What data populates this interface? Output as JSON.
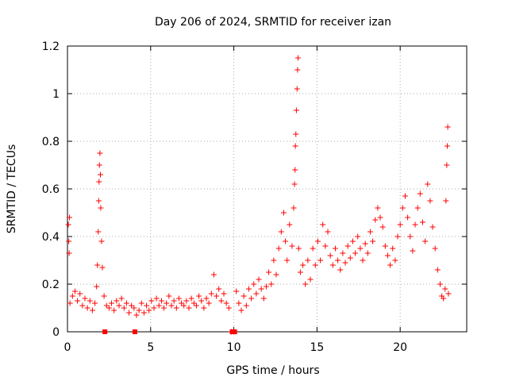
{
  "chart_data": {
    "type": "scatter",
    "title": "Day 206 of 2024, SRMTID for receiver izan",
    "xlabel": "GPS time / hours",
    "ylabel": "SRMTID / TECUs",
    "xlim": [
      0,
      24
    ],
    "ylim": [
      0,
      1.2
    ],
    "grid": true,
    "marker": "+",
    "color": "#ff0000",
    "x_ticks": [
      {
        "value": 0,
        "label": "0"
      },
      {
        "value": 5,
        "label": "5"
      },
      {
        "value": 10,
        "label": "10"
      },
      {
        "value": 15,
        "label": "15"
      },
      {
        "value": 20,
        "label": "20"
      }
    ],
    "y_ticks": [
      {
        "value": 0,
        "label": "0"
      },
      {
        "value": 0.2,
        "label": "0.2"
      },
      {
        "value": 0.4,
        "label": "0.4"
      },
      {
        "value": 0.6,
        "label": "0.6"
      },
      {
        "value": 0.8,
        "label": "0.8"
      },
      {
        "value": 1.0,
        "label": "1"
      },
      {
        "value": 1.2,
        "label": "1.2"
      }
    ],
    "series": [
      {
        "name": "SRMTID",
        "points": [
          [
            0.05,
            0.45
          ],
          [
            0.08,
            0.38
          ],
          [
            0.1,
            0.33
          ],
          [
            0.12,
            0.48
          ],
          [
            0.15,
            0.12
          ],
          [
            0.3,
            0.15
          ],
          [
            0.45,
            0.17
          ],
          [
            0.6,
            0.13
          ],
          [
            0.75,
            0.16
          ],
          [
            0.9,
            0.11
          ],
          [
            1.05,
            0.14
          ],
          [
            1.2,
            0.1
          ],
          [
            1.35,
            0.13
          ],
          [
            1.5,
            0.09
          ],
          [
            1.65,
            0.12
          ],
          [
            1.75,
            0.19
          ],
          [
            1.8,
            0.28
          ],
          [
            1.85,
            0.42
          ],
          [
            1.88,
            0.55
          ],
          [
            1.9,
            0.63
          ],
          [
            1.92,
            0.7
          ],
          [
            1.95,
            0.75
          ],
          [
            1.98,
            0.66
          ],
          [
            2.0,
            0.52
          ],
          [
            2.05,
            0.38
          ],
          [
            2.1,
            0.27
          ],
          [
            2.2,
            0.15
          ],
          [
            2.35,
            0.11
          ],
          [
            2.5,
            0.1
          ],
          [
            2.65,
            0.12
          ],
          [
            2.8,
            0.09
          ],
          [
            2.95,
            0.13
          ],
          [
            3.1,
            0.11
          ],
          [
            3.25,
            0.14
          ],
          [
            3.4,
            0.1
          ],
          [
            3.55,
            0.12
          ],
          [
            3.7,
            0.08
          ],
          [
            3.85,
            0.11
          ],
          [
            4.0,
            0.1
          ],
          [
            4.15,
            0.07
          ],
          [
            4.3,
            0.09
          ],
          [
            4.45,
            0.12
          ],
          [
            4.6,
            0.08
          ],
          [
            4.75,
            0.11
          ],
          [
            4.9,
            0.09
          ],
          [
            5.05,
            0.13
          ],
          [
            5.2,
            0.1
          ],
          [
            5.35,
            0.14
          ],
          [
            5.5,
            0.11
          ],
          [
            5.65,
            0.13
          ],
          [
            5.8,
            0.1
          ],
          [
            5.95,
            0.12
          ],
          [
            6.1,
            0.15
          ],
          [
            6.25,
            0.11
          ],
          [
            6.4,
            0.13
          ],
          [
            6.55,
            0.1
          ],
          [
            6.7,
            0.14
          ],
          [
            6.85,
            0.12
          ],
          [
            7.0,
            0.11
          ],
          [
            7.15,
            0.13
          ],
          [
            7.3,
            0.1
          ],
          [
            7.45,
            0.14
          ],
          [
            7.6,
            0.12
          ],
          [
            7.75,
            0.11
          ],
          [
            7.9,
            0.15
          ],
          [
            8.05,
            0.13
          ],
          [
            8.2,
            0.1
          ],
          [
            8.35,
            0.14
          ],
          [
            8.5,
            0.12
          ],
          [
            8.65,
            0.16
          ],
          [
            8.8,
            0.24
          ],
          [
            8.95,
            0.15
          ],
          [
            9.1,
            0.18
          ],
          [
            9.25,
            0.13
          ],
          [
            9.4,
            0.16
          ],
          [
            9.55,
            0.12
          ],
          [
            9.7,
            0.1
          ],
          [
            9.85,
            0.0
          ],
          [
            10.0,
            0.0
          ],
          [
            10.15,
            0.17
          ],
          [
            10.3,
            0.12
          ],
          [
            10.45,
            0.09
          ],
          [
            10.6,
            0.15
          ],
          [
            10.75,
            0.11
          ],
          [
            10.9,
            0.18
          ],
          [
            11.05,
            0.14
          ],
          [
            11.2,
            0.2
          ],
          [
            11.35,
            0.16
          ],
          [
            11.5,
            0.22
          ],
          [
            11.65,
            0.18
          ],
          [
            11.8,
            0.14
          ],
          [
            11.95,
            0.19
          ],
          [
            12.1,
            0.25
          ],
          [
            12.25,
            0.2
          ],
          [
            12.4,
            0.3
          ],
          [
            12.55,
            0.24
          ],
          [
            12.7,
            0.35
          ],
          [
            12.85,
            0.42
          ],
          [
            13.0,
            0.5
          ],
          [
            13.1,
            0.38
          ],
          [
            13.2,
            0.3
          ],
          [
            13.35,
            0.45
          ],
          [
            13.5,
            0.36
          ],
          [
            13.6,
            0.52
          ],
          [
            13.65,
            0.62
          ],
          [
            13.68,
            0.68
          ],
          [
            13.7,
            0.78
          ],
          [
            13.73,
            0.83
          ],
          [
            13.76,
            0.93
          ],
          [
            13.8,
            1.02
          ],
          [
            13.83,
            1.1
          ],
          [
            13.86,
            1.15
          ],
          [
            13.9,
            0.35
          ],
          [
            14.0,
            0.25
          ],
          [
            14.15,
            0.28
          ],
          [
            14.3,
            0.2
          ],
          [
            14.45,
            0.3
          ],
          [
            14.6,
            0.22
          ],
          [
            14.75,
            0.35
          ],
          [
            14.9,
            0.28
          ],
          [
            15.05,
            0.38
          ],
          [
            15.2,
            0.3
          ],
          [
            15.35,
            0.45
          ],
          [
            15.5,
            0.36
          ],
          [
            15.65,
            0.42
          ],
          [
            15.8,
            0.32
          ],
          [
            15.95,
            0.28
          ],
          [
            16.1,
            0.35
          ],
          [
            16.25,
            0.3
          ],
          [
            16.4,
            0.26
          ],
          [
            16.55,
            0.33
          ],
          [
            16.7,
            0.29
          ],
          [
            16.85,
            0.36
          ],
          [
            17.0,
            0.31
          ],
          [
            17.15,
            0.38
          ],
          [
            17.3,
            0.33
          ],
          [
            17.45,
            0.4
          ],
          [
            17.6,
            0.35
          ],
          [
            17.75,
            0.3
          ],
          [
            17.9,
            0.37
          ],
          [
            18.05,
            0.33
          ],
          [
            18.2,
            0.42
          ],
          [
            18.35,
            0.38
          ],
          [
            18.5,
            0.47
          ],
          [
            18.65,
            0.52
          ],
          [
            18.8,
            0.48
          ],
          [
            18.95,
            0.44
          ],
          [
            19.1,
            0.36
          ],
          [
            19.25,
            0.32
          ],
          [
            19.4,
            0.28
          ],
          [
            19.55,
            0.35
          ],
          [
            19.7,
            0.3
          ],
          [
            19.85,
            0.4
          ],
          [
            20.0,
            0.45
          ],
          [
            20.15,
            0.52
          ],
          [
            20.3,
            0.57
          ],
          [
            20.45,
            0.48
          ],
          [
            20.6,
            0.4
          ],
          [
            20.75,
            0.34
          ],
          [
            20.9,
            0.45
          ],
          [
            21.05,
            0.52
          ],
          [
            21.2,
            0.58
          ],
          [
            21.35,
            0.46
          ],
          [
            21.5,
            0.38
          ],
          [
            21.65,
            0.62
          ],
          [
            21.8,
            0.55
          ],
          [
            21.95,
            0.44
          ],
          [
            22.1,
            0.35
          ],
          [
            22.25,
            0.26
          ],
          [
            22.4,
            0.2
          ],
          [
            22.5,
            0.15
          ],
          [
            22.6,
            0.14
          ],
          [
            22.7,
            0.18
          ],
          [
            22.75,
            0.55
          ],
          [
            22.8,
            0.7
          ],
          [
            22.83,
            0.78
          ],
          [
            22.86,
            0.86
          ],
          [
            22.9,
            0.16
          ]
        ]
      }
    ],
    "zero_markers": [
      2.25,
      4.05,
      9.9,
      10.05
    ]
  }
}
